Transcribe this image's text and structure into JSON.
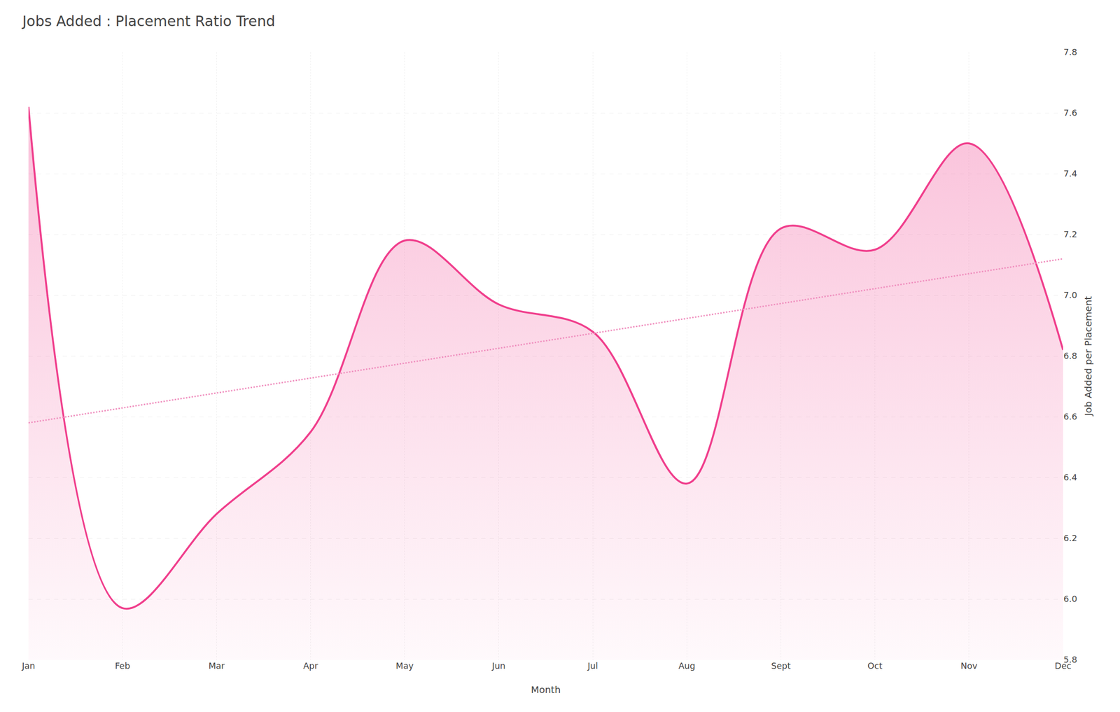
{
  "chart_data": {
    "type": "area",
    "title": "Jobs Added : Placement Ratio Trend",
    "xlabel": "Month",
    "ylabel": "Job Added per Placement",
    "categories": [
      "Jan",
      "Feb",
      "Mar",
      "Apr",
      "May",
      "Jun",
      "Jul",
      "Aug",
      "Sept",
      "Oct",
      "Nov",
      "Dec"
    ],
    "series": [
      {
        "values": [
          7.62,
          5.97,
          6.28,
          6.55,
          7.18,
          6.97,
          6.88,
          6.38,
          7.22,
          7.15,
          7.5,
          6.82
        ],
        "color": "#F03E8C",
        "line_style": "solid"
      },
      {
        "type": "line",
        "x": [
          "Jan",
          "Dec"
        ],
        "values": [
          6.58,
          7.12
        ],
        "color": "#F090BF",
        "line_style": "dotted"
      }
    ],
    "ylim": [
      5.8,
      7.8
    ],
    "yticks": [
      5.8,
      {
        "value": 6,
        "label": "6.0"
      },
      6.2,
      6.4,
      6.6,
      6.8,
      {
        "value": 7,
        "label": "7.0"
      },
      7.2,
      7.4,
      7.6,
      7.8
    ],
    "grid": true
  }
}
